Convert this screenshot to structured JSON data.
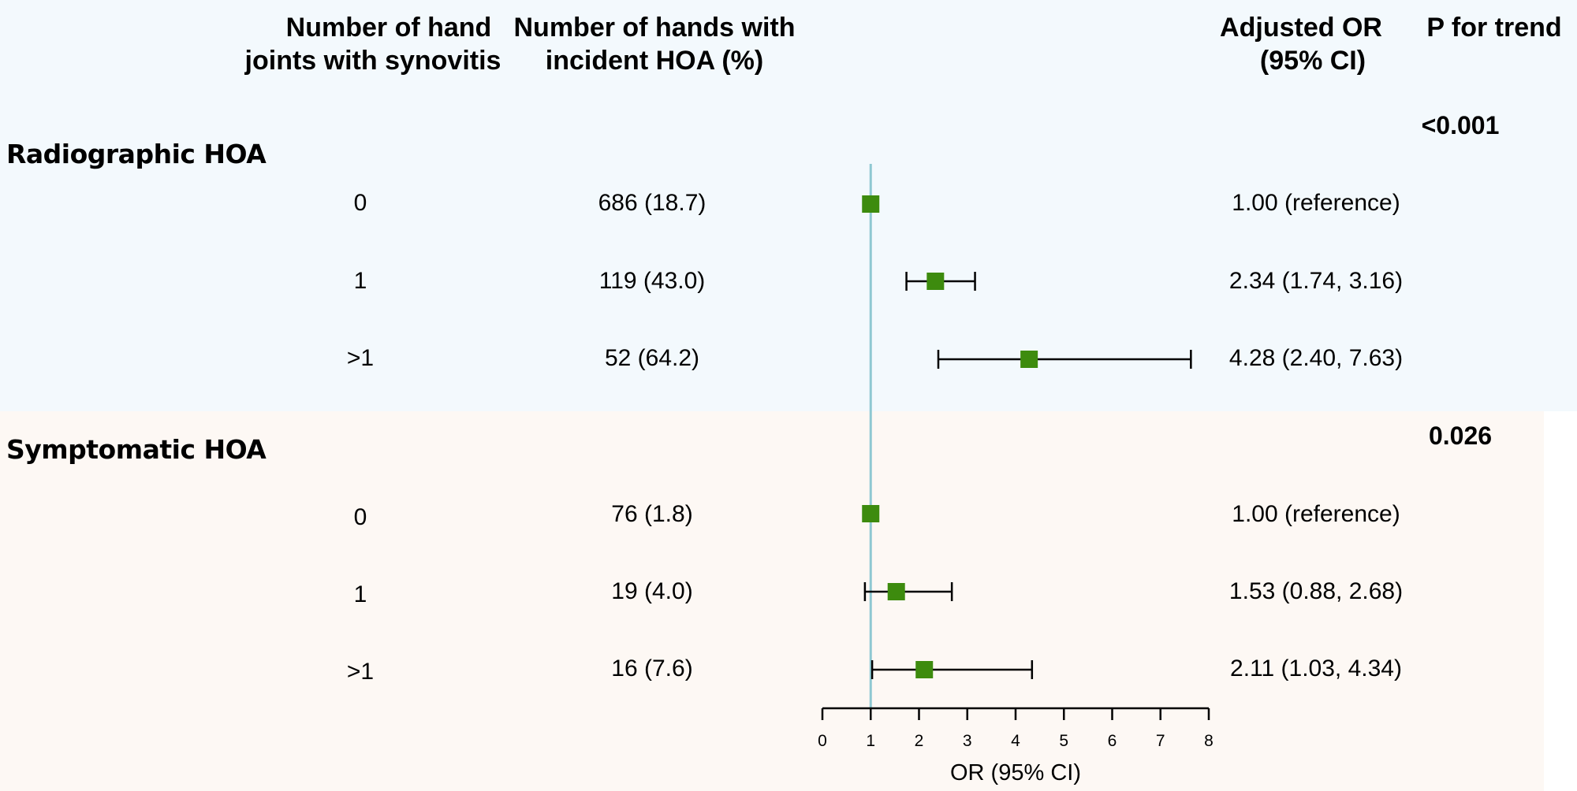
{
  "headers": {
    "synovitis_line1": "Number of hand",
    "synovitis_line2": "joints  with synovitis",
    "incident_line1": "Number of hands with",
    "incident_line2": "incident HOA (%)",
    "or_line1": "Adjusted OR",
    "or_line2": "(95% CI)",
    "ptrend": "P for trend"
  },
  "sections": [
    {
      "title": "Radiographic HOA",
      "p_trend": "<0.001",
      "rows": [
        {
          "joints": "0",
          "incident": "686 (18.7)",
          "or_text": "1.00 (reference)"
        },
        {
          "joints": "1",
          "incident": "119 (43.0)",
          "or_text": "2.34 (1.74, 3.16)"
        },
        {
          "joints": ">1",
          "incident": "52 (64.2)",
          "or_text": "4.28 (2.40, 7.63)"
        }
      ]
    },
    {
      "title": "Symptomatic HOA",
      "p_trend": "0.026",
      "rows": [
        {
          "joints": "0",
          "incident": "76 (1.8)",
          "or_text": "1.00 (reference)"
        },
        {
          "joints": "1",
          "incident": "19 (4.0)",
          "or_text": "1.53 (0.88, 2.68)"
        },
        {
          "joints": ">1",
          "incident": "16 (7.6)",
          "or_text": "2.11 (1.03, 4.34)"
        }
      ]
    }
  ],
  "colors": {
    "marker": "#3d8b0e",
    "reference_line": "#8ec8d2",
    "band_top": "#f3f9fd",
    "band_bottom": "#fdf8f4"
  },
  "chart_data": {
    "type": "forest",
    "xlabel": "OR (95% CI)",
    "xlim": [
      0,
      8
    ],
    "xticks": [
      0,
      1,
      2,
      3,
      4,
      5,
      6,
      7,
      8
    ],
    "reference_value": 1,
    "points": [
      {
        "group": "Radiographic HOA",
        "label": "0",
        "or": 1.0,
        "lo": null,
        "hi": null
      },
      {
        "group": "Radiographic HOA",
        "label": "1",
        "or": 2.34,
        "lo": 1.74,
        "hi": 3.16
      },
      {
        "group": "Radiographic HOA",
        "label": ">1",
        "or": 4.28,
        "lo": 2.4,
        "hi": 7.63
      },
      {
        "group": "Symptomatic HOA",
        "label": "0",
        "or": 1.0,
        "lo": null,
        "hi": null
      },
      {
        "group": "Symptomatic HOA",
        "label": "1",
        "or": 1.53,
        "lo": 0.88,
        "hi": 2.68
      },
      {
        "group": "Symptomatic HOA",
        "label": ">1",
        "or": 2.11,
        "lo": 1.03,
        "hi": 4.34
      }
    ]
  }
}
